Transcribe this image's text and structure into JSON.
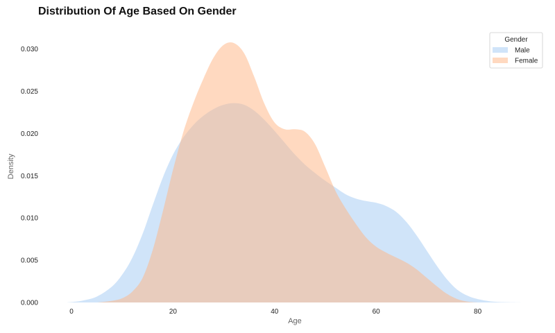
{
  "chart_data": {
    "type": "area",
    "kind": "kde",
    "title": "Distribution Of Age Based On Gender",
    "xlabel": "Age",
    "ylabel": "Density",
    "xlim": [
      -1,
      89
    ],
    "ylim": [
      0,
      0.0302
    ],
    "xticks": [
      0,
      20,
      40,
      60,
      80
    ],
    "yticks": [
      0.0,
      0.005,
      0.01,
      0.015,
      0.02,
      0.025,
      0.03
    ],
    "ytick_labels": [
      "0.000",
      "0.005",
      "0.010",
      "0.015",
      "0.020",
      "0.025",
      "0.030"
    ],
    "grid": false,
    "legend": {
      "title": "Gender",
      "position": "top-right"
    },
    "series": [
      {
        "name": "Male",
        "color": "#a1c9f4",
        "x": [
          -1,
          2,
          5,
          8,
          10,
          12,
          14,
          16,
          18,
          20,
          22,
          24,
          26,
          28,
          30,
          32,
          34,
          36,
          38,
          40,
          42,
          44,
          46,
          48,
          50,
          52,
          54,
          56,
          58,
          60,
          62,
          64,
          66,
          68,
          70,
          72,
          74,
          76,
          78,
          80,
          83,
          86,
          89
        ],
        "values": [
          0.0,
          0.0002,
          0.0007,
          0.0019,
          0.0033,
          0.0053,
          0.0081,
          0.0115,
          0.0148,
          0.0175,
          0.0195,
          0.021,
          0.0221,
          0.0229,
          0.0234,
          0.0236,
          0.0234,
          0.0227,
          0.0216,
          0.0203,
          0.0189,
          0.0175,
          0.0163,
          0.0153,
          0.0144,
          0.0136,
          0.0128,
          0.0123,
          0.012,
          0.0118,
          0.0114,
          0.0107,
          0.0095,
          0.0079,
          0.0061,
          0.0043,
          0.0027,
          0.0015,
          0.0008,
          0.0004,
          0.0001,
          3e-05,
          0.0
        ]
      },
      {
        "name": "Female",
        "color": "#ffb482",
        "x": [
          5,
          8,
          10,
          12,
          14,
          16,
          18,
          20,
          22,
          24,
          26,
          28,
          30,
          32,
          34,
          36,
          38,
          40,
          42,
          44,
          46,
          48,
          50,
          52,
          54,
          56,
          58,
          60,
          62,
          64,
          66,
          68,
          70,
          72,
          74,
          76,
          78,
          80
        ],
        "values": [
          0.0,
          0.0002,
          0.0005,
          0.0013,
          0.0029,
          0.0062,
          0.0108,
          0.0157,
          0.0201,
          0.0236,
          0.0265,
          0.029,
          0.0305,
          0.0307,
          0.0295,
          0.0267,
          0.0235,
          0.0213,
          0.0205,
          0.0205,
          0.0202,
          0.0187,
          0.016,
          0.0132,
          0.0111,
          0.0093,
          0.0077,
          0.0066,
          0.0059,
          0.0053,
          0.0047,
          0.0039,
          0.0029,
          0.0019,
          0.001,
          0.0004,
          0.0001,
          0.0
        ]
      }
    ]
  }
}
